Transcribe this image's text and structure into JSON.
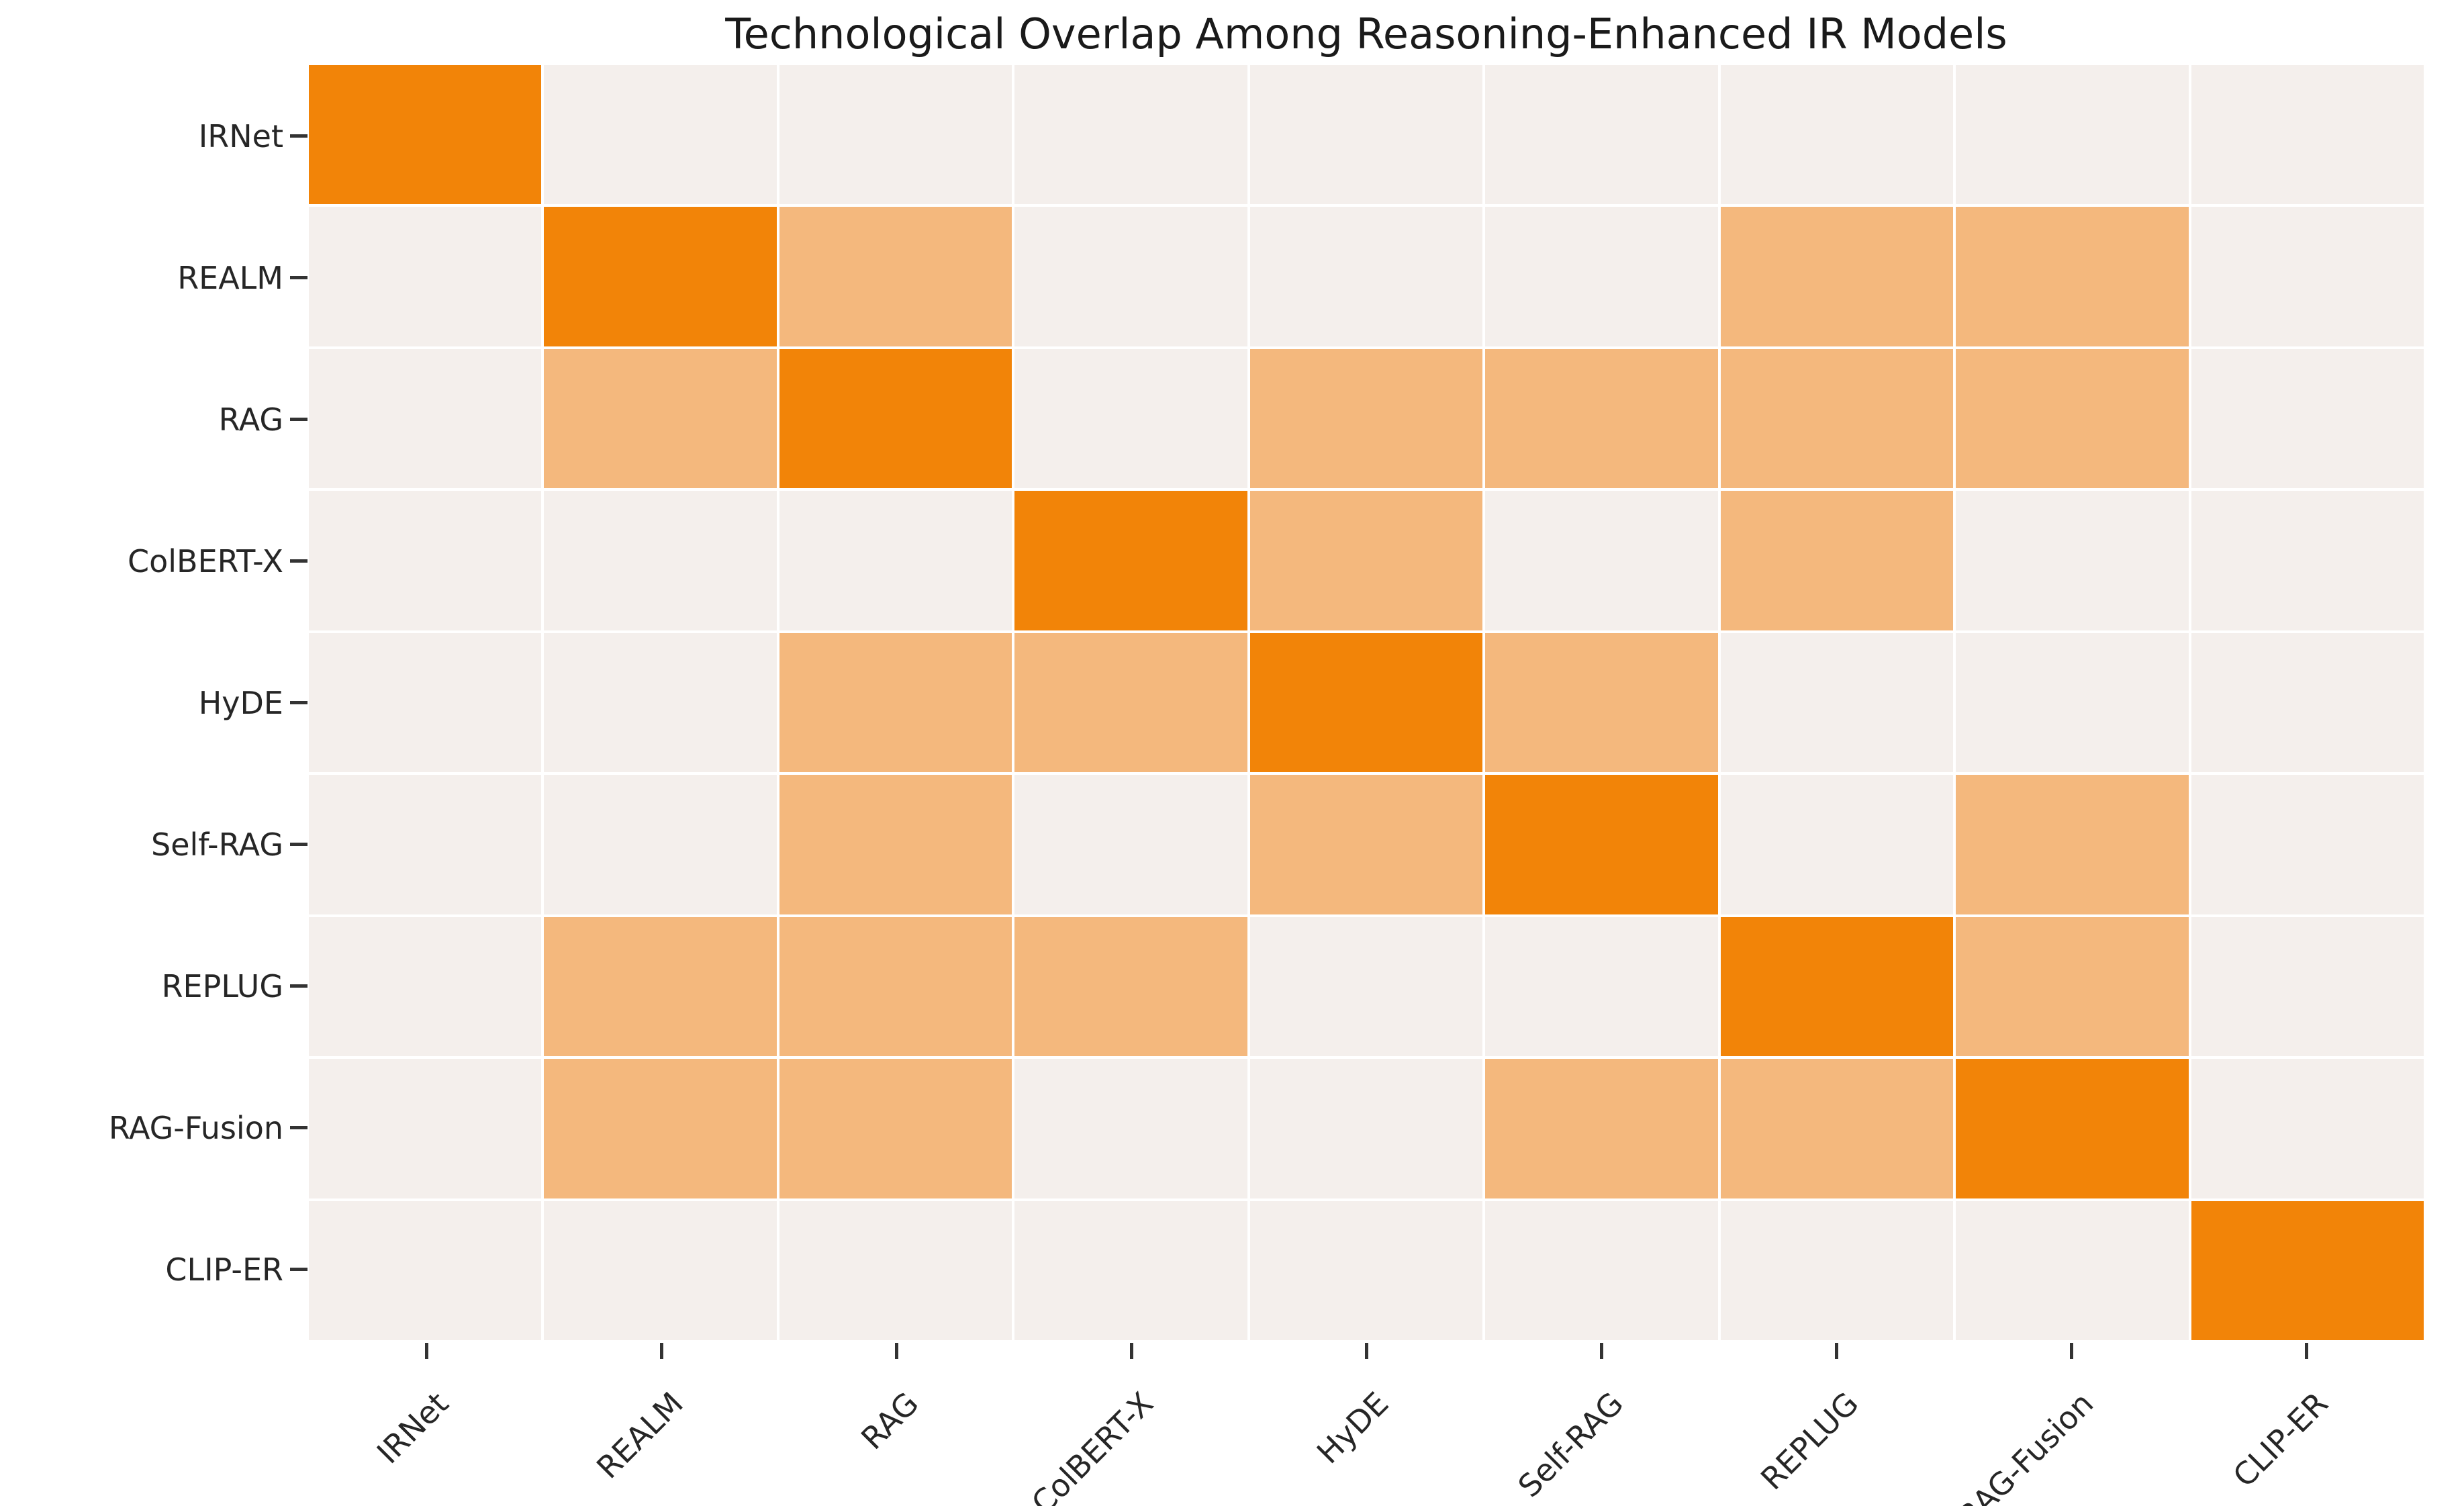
{
  "title": "Technological Overlap Among Reasoning-Enhanced IR Models",
  "chart_data": {
    "type": "heatmap",
    "title": "Technological Overlap Among Reasoning-Enhanced IR Models",
    "x_labels": [
      "IRNet",
      "REALM",
      "RAG",
      "ColBERT-X",
      "HyDE",
      "Self-RAG",
      "REPLUG",
      "RAG-Fusion",
      "CLIP-ER"
    ],
    "y_labels": [
      "IRNet",
      "REALM",
      "RAG",
      "ColBERT-X",
      "HyDE",
      "Self-RAG",
      "REPLUG",
      "RAG-Fusion",
      "CLIP-ER"
    ],
    "matrix": [
      [
        2,
        0,
        0,
        0,
        0,
        0,
        0,
        0,
        0
      ],
      [
        0,
        2,
        1,
        0,
        0,
        0,
        1,
        1,
        0
      ],
      [
        0,
        1,
        2,
        0,
        1,
        1,
        1,
        1,
        0
      ],
      [
        0,
        0,
        0,
        2,
        1,
        0,
        1,
        0,
        0
      ],
      [
        0,
        0,
        1,
        1,
        2,
        1,
        0,
        0,
        0
      ],
      [
        0,
        0,
        1,
        0,
        1,
        2,
        0,
        1,
        0
      ],
      [
        0,
        1,
        1,
        1,
        0,
        0,
        2,
        1,
        0
      ],
      [
        0,
        1,
        1,
        0,
        0,
        1,
        1,
        2,
        0
      ],
      [
        0,
        0,
        0,
        0,
        0,
        0,
        0,
        0,
        2
      ]
    ],
    "value_colors": {
      "0": "#F4EFEC",
      "1": "#F4B87D",
      "2": "#F28408"
    },
    "value_meaning": {
      "0": "no overlap",
      "1": "partial overlap",
      "2": "self / full overlap"
    },
    "gridline_color": "#FFFFFF",
    "tick_color": "#333333",
    "legend": "none",
    "x_label_rotation_deg": 45
  }
}
